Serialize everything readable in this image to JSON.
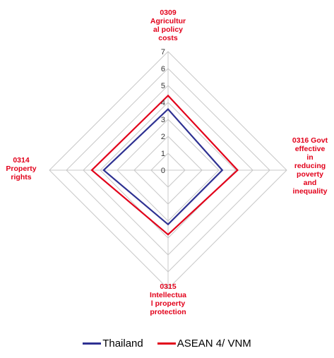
{
  "chart_data": {
    "type": "radar",
    "axes": [
      "0309\nAgricultur\nal policy\ncosts",
      "0316 Govt\neffective\nin\nreducing\npoverty\nand\ninequality",
      "0315\nIntellectua\nl property\nprotection",
      "0314\nProperty\nrights"
    ],
    "tick_labels": [
      "0",
      "1",
      "2",
      "3",
      "4",
      "5",
      "6",
      "7"
    ],
    "range": [
      0,
      7
    ],
    "series": [
      {
        "name": "Thailand",
        "color": "#2e3192",
        "values": [
          3.6,
          3.2,
          3.2,
          3.8
        ]
      },
      {
        "name": "ASEAN 4/ VNM",
        "color": "#e2001a",
        "values": [
          4.4,
          4.1,
          3.8,
          4.5
        ]
      }
    ],
    "grid": true,
    "legend_position": "bottom"
  }
}
